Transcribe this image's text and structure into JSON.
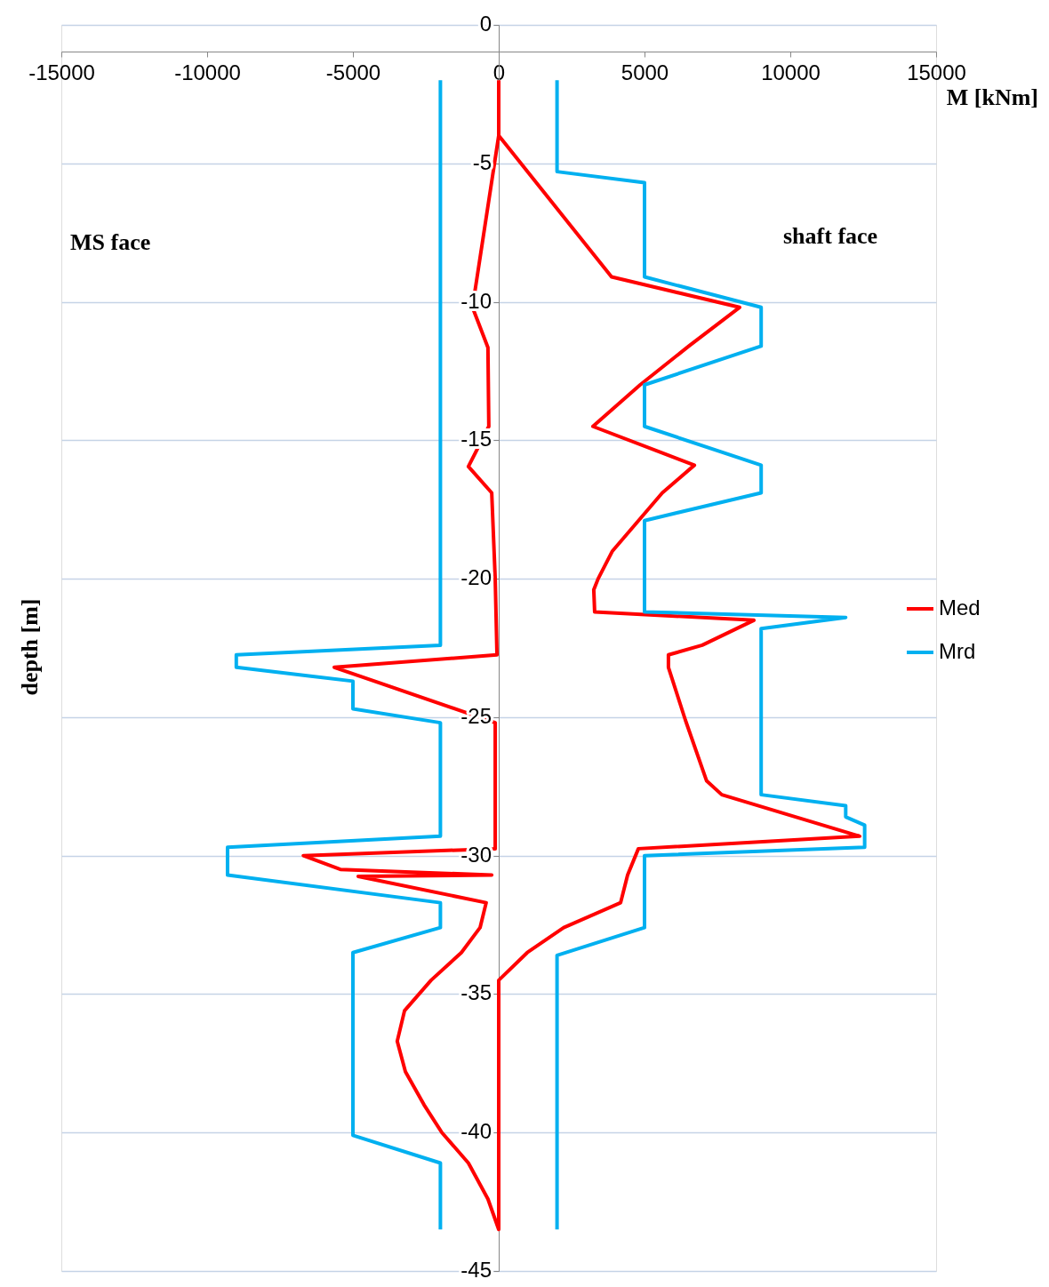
{
  "chart_data": {
    "type": "line",
    "xlabel": "M [kNm]",
    "ylabel": "depth [m]",
    "annotations": [
      "MS face",
      "shaft face"
    ],
    "xlim": [
      -15000,
      15000
    ],
    "xticks": [
      -15000,
      -10000,
      -5000,
      0,
      5000,
      10000,
      15000
    ],
    "ylim": [
      -45,
      0
    ],
    "yticks": [
      0,
      -5,
      -10,
      -15,
      -20,
      -25,
      -30,
      -35,
      -40,
      -45
    ],
    "grid": "y",
    "legend": "right",
    "marker": "none",
    "line_style": "solid",
    "series": [
      {
        "name": "Med",
        "color": "#ff0000",
        "x": [
          0,
          0,
          -900,
          -370,
          -340,
          -1040,
          -240,
          -120,
          -60,
          -5640,
          -120,
          -120,
          -6700,
          -5430,
          -240,
          -4820,
          -430,
          -640,
          -1280,
          -2320,
          -3230,
          -3480,
          -3200,
          -2560,
          -1950,
          -1040,
          -370,
          0,
          0,
          980,
          2230,
          4180,
          4420,
          4790,
          12380,
          7650,
          7130,
          6400,
          5820,
          5820,
          6980,
          8750,
          3290,
          3260,
          3410,
          3900,
          5610,
          6710,
          3230,
          4850,
          6520,
          8260,
          3870,
          0
        ],
        "values": [
          -2,
          -4,
          -10.2,
          -11.65,
          -14.5,
          -15.95,
          -16.9,
          -20,
          -22.75,
          -23.2,
          -25.2,
          -29.75,
          -30,
          -30.5,
          -30.7,
          -30.75,
          -31.7,
          -32.6,
          -33.5,
          -34.5,
          -35.6,
          -36.7,
          -37.8,
          -39,
          -40,
          -41.1,
          -42.4,
          -43.5,
          -34.5,
          -33.5,
          -32.6,
          -31.7,
          -30.7,
          -29.75,
          -29.3,
          -27.8,
          -27.3,
          -25.1,
          -23.2,
          -22.75,
          -22.4,
          -21.5,
          -21.2,
          -20.4,
          -20,
          -19,
          -16.9,
          -15.9,
          -14.5,
          -13,
          -11.6,
          -10.2,
          -9.1,
          -4
        ]
      },
      {
        "name": "Mrd",
        "color": "#00b0f0",
        "x": [
          2000,
          2000,
          5000,
          5000,
          9000,
          9000,
          5000,
          5000,
          9000,
          9000,
          5000,
          5000,
          11900,
          9000,
          9000,
          11900,
          11900,
          12550,
          12550,
          5000,
          5000,
          2000,
          2000,
          null,
          -2000,
          -2000,
          -9000,
          -9000,
          -5000,
          -5000,
          -2000,
          -2000,
          -9300,
          -9300,
          -2000,
          -2000,
          -5000,
          -5000,
          -2000,
          -2000
        ],
        "values": [
          -2,
          -5.3,
          -5.7,
          -9.1,
          -10.2,
          -11.6,
          -13,
          -14.5,
          -15.9,
          -16.9,
          -17.9,
          -21.2,
          -21.4,
          -21.8,
          -27.8,
          -28.2,
          -28.6,
          -28.9,
          -29.7,
          -30,
          -32.6,
          -33.6,
          -43.5,
          null,
          -2,
          -22.4,
          -22.75,
          -23.2,
          -23.7,
          -24.7,
          -25.2,
          -29.3,
          -29.7,
          -30.7,
          -31.7,
          -32.6,
          -33.5,
          -40.1,
          -41.1,
          -43.5
        ]
      }
    ]
  }
}
